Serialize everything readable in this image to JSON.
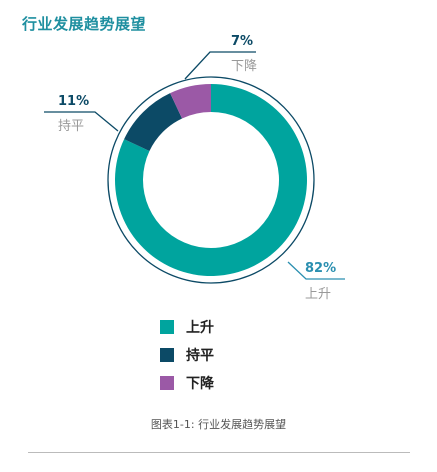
{
  "chart_data": {
    "type": "pie",
    "title": "行业发展趋势展望",
    "categories": [
      "上升",
      "持平",
      "下降"
    ],
    "values": [
      82,
      11,
      7
    ],
    "value_labels": [
      "82%",
      "11%",
      "7%"
    ],
    "colors": [
      "#00a49e",
      "#0c4a66",
      "#9b59a6"
    ],
    "label_colors": [
      "#2a8fb0",
      "#0c4a66",
      "#0c4a66"
    ],
    "legend_position": "bottom",
    "caption": "图表1-1: 行业发展趋势展望"
  }
}
